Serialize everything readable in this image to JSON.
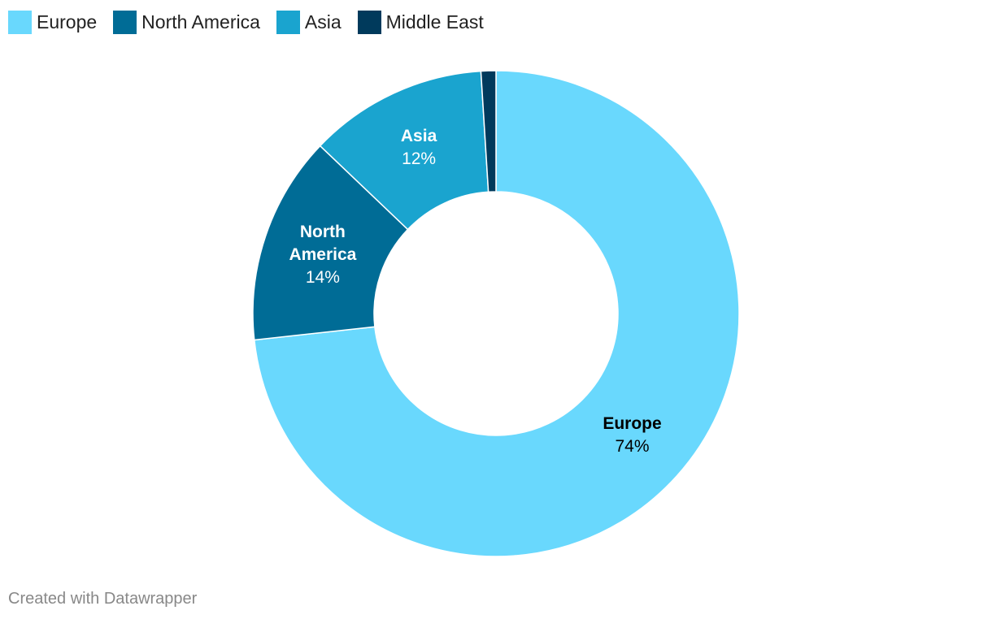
{
  "chart_data": {
    "type": "donut",
    "categories": [
      "Europe",
      "North America",
      "Asia",
      "Middle East"
    ],
    "values": [
      74,
      14,
      12,
      1
    ],
    "value_labels": [
      "74%",
      "14%",
      "12%",
      null
    ],
    "colors": [
      "#69d8fd",
      "#006c96",
      "#1aa4cf",
      "#003a5c"
    ],
    "legend": "top-left",
    "footer": "Created with Datawrapper"
  }
}
